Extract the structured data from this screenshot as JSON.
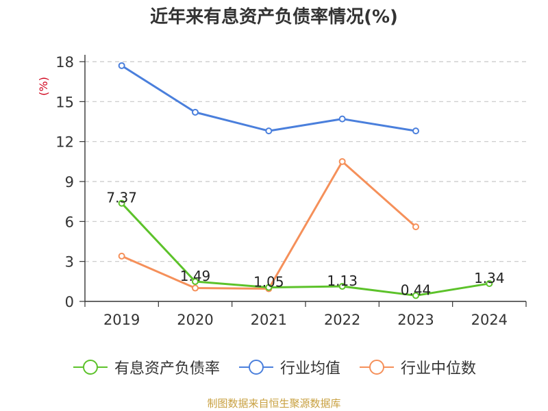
{
  "chart_data": {
    "type": "line",
    "title": "近年来有息资产负债率情况(%)",
    "ylabel": "(%)",
    "categories": [
      "2019",
      "2020",
      "2021",
      "2022",
      "2023",
      "2024"
    ],
    "ylim": [
      0,
      18
    ],
    "yticks": [
      0,
      3,
      6,
      9,
      12,
      15,
      18
    ],
    "grid": true,
    "legend_position": "bottom",
    "series": [
      {
        "name": "有息资产负债率",
        "color": "#5cc22a",
        "values": [
          7.37,
          1.49,
          1.05,
          1.13,
          0.44,
          1.34
        ],
        "labels": [
          "7.37",
          "1.49",
          "1.05",
          "1.13",
          "0.44",
          "1.34"
        ]
      },
      {
        "name": "行业均值",
        "color": "#4a7fdc",
        "values": [
          17.7,
          14.2,
          12.8,
          13.7,
          12.8,
          null
        ]
      },
      {
        "name": "行业中位数",
        "color": "#f5905a",
        "values": [
          3.4,
          1.0,
          0.95,
          10.5,
          5.6,
          null
        ]
      }
    ]
  },
  "source": "制图数据来自恒生聚源数据库"
}
